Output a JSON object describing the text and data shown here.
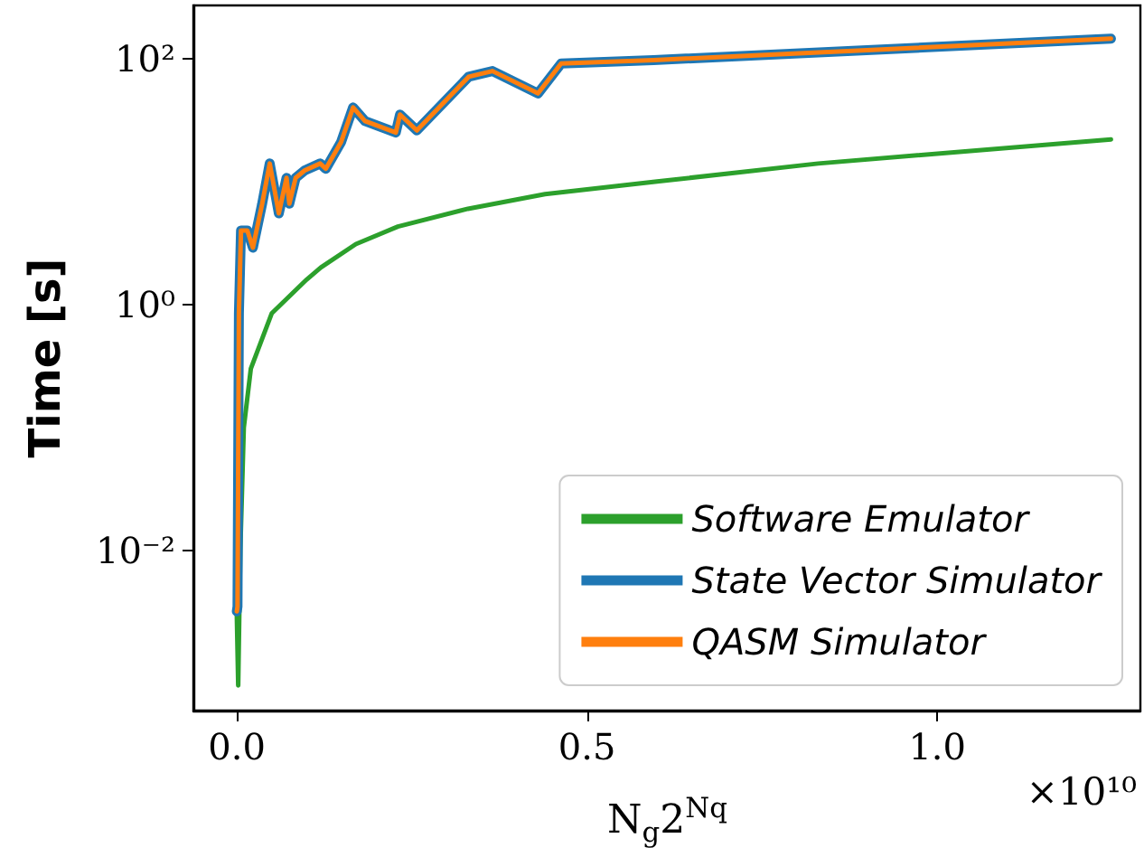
{
  "chart_data": {
    "type": "line",
    "xlabel": "N$_{g}$2$^{Nq}$",
    "ylabel": "Time [s]",
    "annotations": [
      "×10¹⁰"
    ],
    "xlim": [
      -0.062,
      1.29
    ],
    "xticks": [
      {
        "value": 0,
        "label": "0.0"
      },
      0.5,
      {
        "value": 1,
        "label": "1.0"
      }
    ],
    "ylim": [
      0.0005,
      270
    ],
    "yticks": [
      {
        "value": 0.01,
        "label": "10⁻²"
      },
      {
        "value": 1,
        "label": "10⁰"
      },
      {
        "value": 100,
        "label": "10²"
      }
    ],
    "log": "y",
    "grid": false,
    "legend": "bottom right",
    "marker": "none",
    "line_style": "solid",
    "series": [
      {
        "name": "Software Emulator",
        "color": "#2ca02c",
        "x": [
          0,
          0.002,
          0.005,
          0.01,
          0.02,
          0.05,
          0.1,
          0.12,
          0.17,
          0.23,
          0.33,
          0.44,
          0.6,
          0.83,
          1.248
        ],
        "values": [
          0.003,
          0.0008,
          0.01,
          0.1,
          0.3,
          0.85,
          1.6,
          2.0,
          3.1,
          4.3,
          6.0,
          7.9,
          10,
          14,
          22
        ]
      },
      {
        "name": "State Vector Simulator",
        "color": "#1f77b4",
        "x": [
          0,
          0.001,
          0.003,
          0.006,
          0.015,
          0.023,
          0.036,
          0.047,
          0.06,
          0.071,
          0.075,
          0.084,
          0.097,
          0.119,
          0.127,
          0.149,
          0.166,
          0.183,
          0.227,
          0.233,
          0.257,
          0.331,
          0.365,
          0.43,
          0.463,
          0.595,
          1.248
        ],
        "values": [
          0.0032,
          0.0035,
          0.85,
          4,
          4,
          2.9,
          6.5,
          14,
          5.5,
          10.7,
          6.6,
          10.7,
          12.3,
          14,
          12.7,
          21,
          40,
          31,
          25,
          35,
          26,
          71,
          79,
          52,
          91,
          97,
          145
        ]
      },
      {
        "name": "QASM Simulator",
        "color": "#ff7f0e",
        "x": [
          0,
          0.001,
          0.003,
          0.006,
          0.015,
          0.023,
          0.036,
          0.047,
          0.06,
          0.071,
          0.075,
          0.084,
          0.097,
          0.119,
          0.127,
          0.149,
          0.166,
          0.183,
          0.227,
          0.233,
          0.257,
          0.331,
          0.365,
          0.43,
          0.463,
          0.595,
          1.248
        ],
        "values": [
          0.0032,
          0.0035,
          0.85,
          4,
          4,
          2.9,
          6.5,
          14,
          5.5,
          10.7,
          6.6,
          10.7,
          12.3,
          14,
          12.7,
          21,
          40,
          31,
          25,
          35,
          26,
          71,
          79,
          52,
          91,
          97,
          145
        ]
      }
    ]
  }
}
